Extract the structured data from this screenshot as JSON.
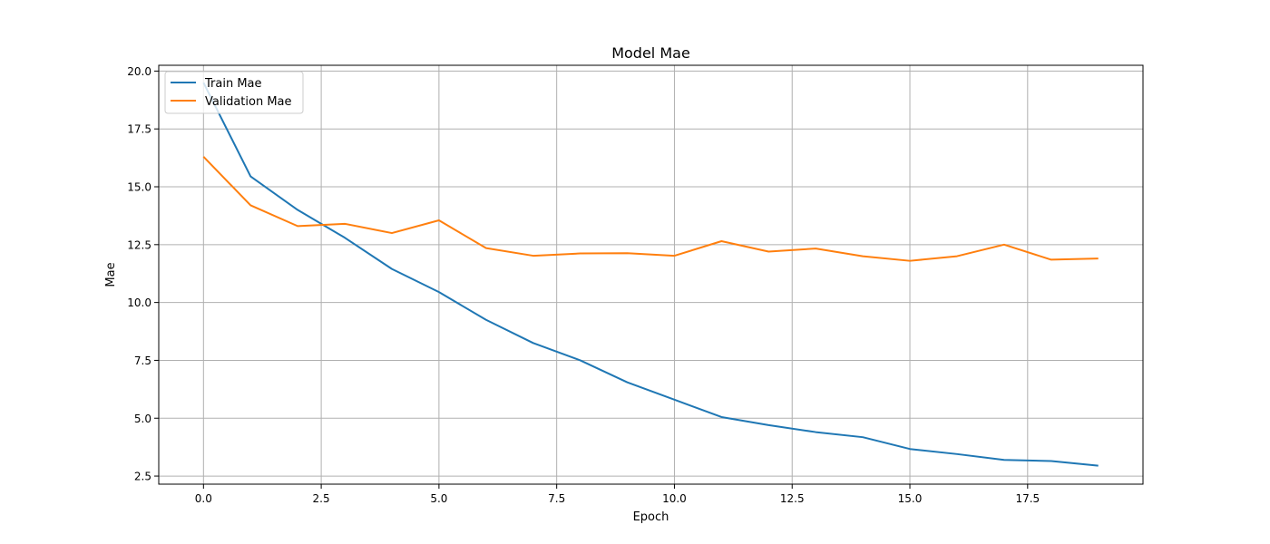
{
  "chart_data": {
    "type": "line",
    "title": "Model Mae",
    "xlabel": "Epoch",
    "ylabel": "Mae",
    "xlim": [
      -0.95,
      19.95
    ],
    "ylim": [
      2.15,
      20.25
    ],
    "xticks": [
      0.0,
      2.5,
      5.0,
      7.5,
      10.0,
      12.5,
      15.0,
      17.5
    ],
    "xtick_labels": [
      "0.0",
      "2.5",
      "5.0",
      "7.5",
      "10.0",
      "12.5",
      "15.0",
      "17.5"
    ],
    "yticks": [
      2.5,
      5.0,
      7.5,
      10.0,
      12.5,
      15.0,
      17.5,
      20.0
    ],
    "ytick_labels": [
      "2.5",
      "5.0",
      "7.5",
      "10.0",
      "12.5",
      "15.0",
      "17.5",
      "20.0"
    ],
    "grid": true,
    "legend_position": "top-left",
    "x": [
      0,
      1,
      2,
      3,
      4,
      5,
      6,
      7,
      8,
      9,
      10,
      11,
      12,
      13,
      14,
      15,
      16,
      17,
      18,
      19
    ],
    "series": [
      {
        "name": "Train Mae",
        "color": "#1f77b4",
        "values": [
          19.5,
          15.45,
          14.0,
          12.8,
          11.45,
          10.45,
          9.25,
          8.25,
          7.5,
          6.55,
          5.8,
          5.05,
          4.7,
          4.4,
          4.18,
          3.67,
          3.45,
          3.2,
          3.15,
          2.95
        ]
      },
      {
        "name": "Validation Mae",
        "color": "#ff7f0e",
        "values": [
          16.3,
          14.2,
          13.3,
          13.4,
          13.0,
          13.55,
          12.35,
          12.02,
          12.12,
          12.13,
          12.02,
          12.65,
          12.2,
          12.33,
          12.0,
          11.8,
          12.0,
          12.5,
          11.85,
          11.9
        ]
      }
    ]
  }
}
